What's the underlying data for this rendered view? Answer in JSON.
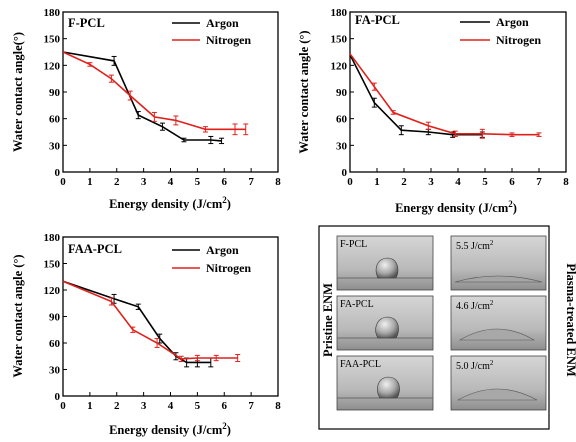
{
  "colors": {
    "argon": "#000000",
    "nitrogen": "#e0201b"
  },
  "chart_data": [
    {
      "type": "line",
      "title": "F-PCL",
      "xlabel_text": "Energy density (J/cm",
      "xlabel_sup": "2",
      "xlabel_close": ")",
      "ylabel": "Water contact angle(°)",
      "xlim": [
        0,
        8
      ],
      "ylim": [
        0,
        180
      ],
      "xticks": [
        0,
        1,
        2,
        3,
        4,
        5,
        6,
        7,
        8
      ],
      "yticks": [
        0,
        30,
        60,
        90,
        120,
        150,
        180
      ],
      "legend_position": "top-right",
      "series": [
        {
          "name": "Argon",
          "x": [
            0,
            1.9,
            2.8,
            3.7,
            4.5,
            5.5,
            5.9
          ],
          "y": [
            135,
            125,
            64,
            51,
            36,
            36,
            35
          ],
          "err": [
            0,
            5,
            4,
            4,
            2,
            4,
            3
          ]
        },
        {
          "name": "Nitrogen",
          "x": [
            0,
            1.0,
            1.8,
            2.5,
            3.4,
            4.2,
            5.3,
            6.4,
            6.8
          ],
          "y": [
            135,
            121,
            105,
            86,
            62,
            58,
            48,
            48,
            48
          ],
          "err": [
            0,
            2,
            4,
            5,
            5,
            5,
            3,
            6,
            6
          ]
        }
      ]
    },
    {
      "type": "line",
      "title": "FA-PCL",
      "xlabel_text": "Energy density (J/cm",
      "xlabel_sup": "2",
      "xlabel_close": ")",
      "ylabel": "Water contact angle (°)",
      "xlim": [
        0,
        8
      ],
      "ylim": [
        0,
        180
      ],
      "xticks": [
        0,
        1,
        2,
        3,
        4,
        5,
        6,
        7,
        8
      ],
      "yticks": [
        0,
        30,
        60,
        90,
        120,
        150,
        180
      ],
      "legend_position": "top-right",
      "series": [
        {
          "name": "Argon",
          "x": [
            0,
            0.9,
            1.9,
            2.9,
            3.8,
            4.9
          ],
          "y": [
            132,
            78,
            47,
            45,
            42,
            42
          ],
          "err": [
            0,
            5,
            5,
            3,
            3,
            3
          ]
        },
        {
          "name": "Nitrogen",
          "x": [
            0,
            0.9,
            1.6,
            2.9,
            3.9,
            4.9,
            6.0,
            7.0
          ],
          "y": [
            133,
            96,
            67,
            52,
            43,
            43,
            42,
            42
          ],
          "err": [
            0,
            4,
            2,
            4,
            3,
            5,
            2,
            2
          ]
        }
      ]
    },
    {
      "type": "line",
      "title": "FAA-PCL",
      "xlabel_text": "Energy density (J/cm",
      "xlabel_sup": "2",
      "xlabel_close": ")",
      "ylabel": "Water contact angle (°)",
      "xlim": [
        0,
        8
      ],
      "ylim": [
        0,
        180
      ],
      "xticks": [
        0,
        1,
        2,
        3,
        4,
        5,
        6,
        7,
        8
      ],
      "yticks": [
        0,
        30,
        60,
        90,
        120,
        150,
        180
      ],
      "legend_position": "top-right",
      "series": [
        {
          "name": "Argon",
          "x": [
            0,
            1.9,
            2.8,
            3.6,
            4.2,
            4.6,
            5.0,
            5.5
          ],
          "y": [
            130,
            110,
            101,
            65,
            45,
            38,
            38,
            38
          ],
          "err": [
            0,
            5,
            3,
            5,
            4,
            5,
            5,
            5
          ]
        },
        {
          "name": "Nitrogen",
          "x": [
            0,
            1.8,
            2.6,
            3.5,
            4.4,
            5.0,
            5.7,
            6.5
          ],
          "y": [
            130,
            107,
            75,
            60,
            42,
            43,
            43,
            43
          ],
          "err": [
            0,
            4,
            3,
            5,
            3,
            3,
            3,
            4
          ]
        }
      ]
    }
  ],
  "images_panel": {
    "left_label": "Pristine ENM",
    "right_label": "Plasma-treated ENM",
    "left_images": [
      "F-PCL",
      "FA-PCL",
      "FAA-PCL"
    ],
    "right_images": [
      {
        "text": "5.5 J/cm",
        "sup": "2"
      },
      {
        "text": "4.6 J/cm",
        "sup": "2"
      },
      {
        "text": "5.0 J/cm",
        "sup": "2"
      }
    ]
  }
}
